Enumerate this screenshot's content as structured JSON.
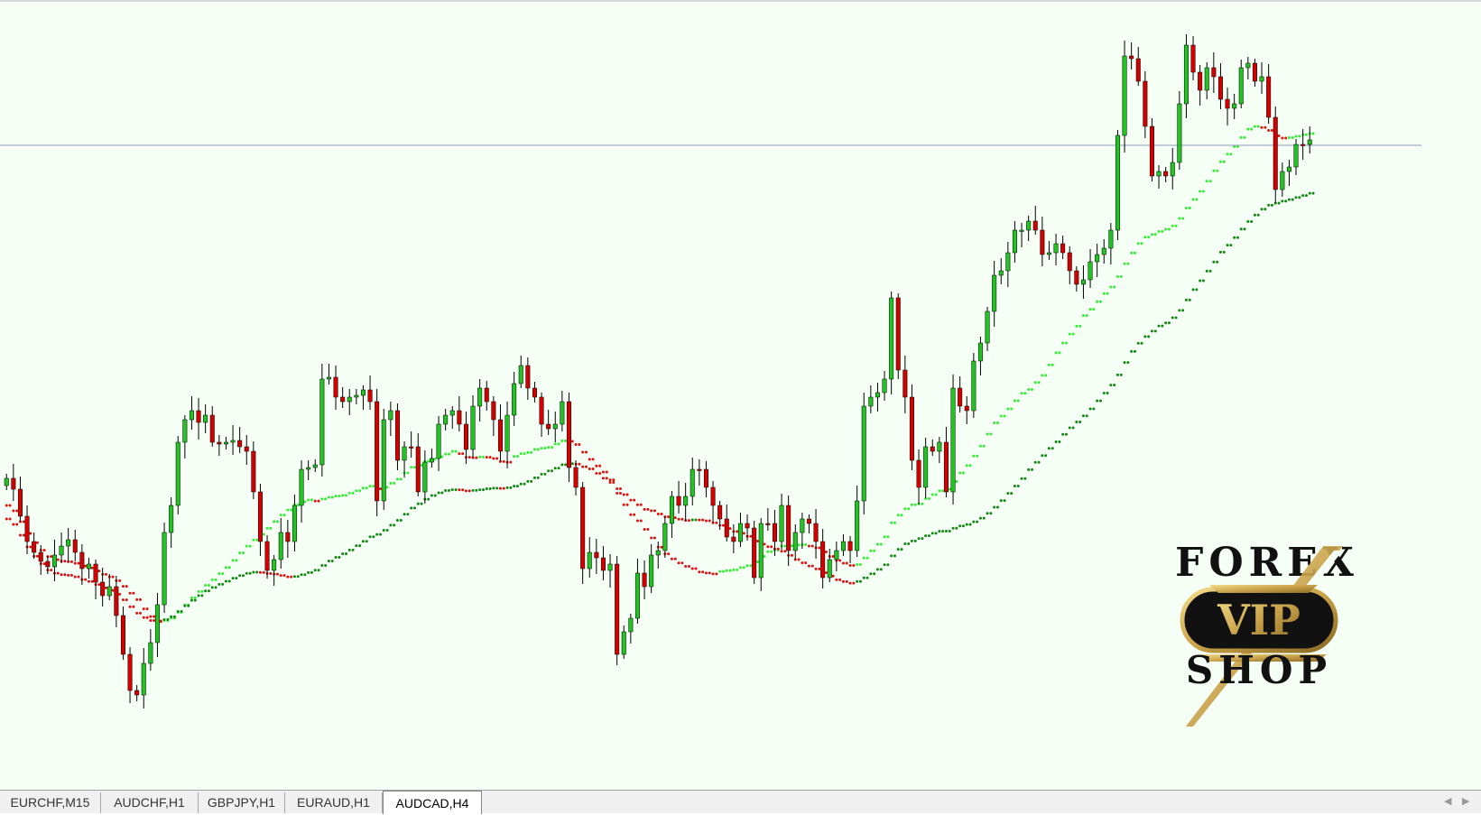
{
  "tabs": [
    {
      "label": "EURCHF,M15",
      "active": false
    },
    {
      "label": "AUDCHF,H1",
      "active": false
    },
    {
      "label": "GBPJPY,H1",
      "active": false
    },
    {
      "label": "EURAUD,H1",
      "active": false
    },
    {
      "label": "AUDCAD,H4",
      "active": true
    }
  ],
  "logo": {
    "top": "FOREX",
    "badge": "VIP",
    "bottom": "SHOP"
  },
  "colors": {
    "background": "#f5fff6",
    "bull_candle": "#22c322",
    "bear_candle": "#d40000",
    "wick": "#000000",
    "ma_fast_bear": "#e01010",
    "ma_fast_bull": "#33ee33",
    "ma_slow_bull": "#118811",
    "price_line": "#8a9ab8",
    "logo_gold": "#c9a24a"
  },
  "chart_data": {
    "type": "candlestick",
    "symbol": "AUDCAD",
    "timeframe": "H4",
    "closes": [
      530,
      542,
      572,
      600,
      612,
      622,
      628,
      615,
      605,
      598,
      612,
      630,
      625,
      645,
      660,
      650,
      682,
      725,
      765,
      770,
      735,
      712,
      670,
      590,
      560,
      490,
      465,
      455,
      468,
      460,
      490,
      492,
      490,
      488,
      495,
      500,
      545,
      600,
      632,
      620,
      590,
      600,
      560,
      520,
      518,
      515,
      420,
      418,
      440,
      445,
      440,
      438,
      432,
      445,
      555,
      465,
      455,
      510,
      495,
      495,
      545,
      512,
      508,
      470,
      460,
      455,
      470,
      498,
      450,
      430,
      445,
      465,
      500,
      460,
      425,
      405,
      430,
      440,
      470,
      475,
      470,
      445,
      518,
      540,
      630,
      612,
      618,
      632,
      625,
      725,
      700,
      685,
      635,
      650,
      615,
      610,
      580,
      550,
      560,
      550,
      520,
      520,
      540,
      560,
      575,
      595,
      600,
      580,
      585,
      640,
      580,
      580,
      600,
      560,
      610,
      590,
      575,
      580,
      600,
      640,
      620,
      610,
      600,
      610,
      555,
      450,
      440,
      435,
      420,
      330,
      410,
      440,
      510,
      540,
      495,
      500,
      490,
      545,
      430,
      450,
      455,
      400,
      380,
      345,
      305,
      300,
      280,
      255,
      255,
      245,
      255,
      282,
      280,
      270,
      280,
      300,
      315,
      310,
      290,
      282,
      275,
      255,
      150,
      62,
      65,
      90,
      140,
      195,
      190,
      195,
      180,
      115,
      50,
      80,
      100,
      75,
      85,
      110,
      120,
      115,
      75,
      70,
      90,
      85,
      130,
      210,
      190,
      185,
      160,
      160,
      155
    ],
    "price_level_line": 161
  }
}
